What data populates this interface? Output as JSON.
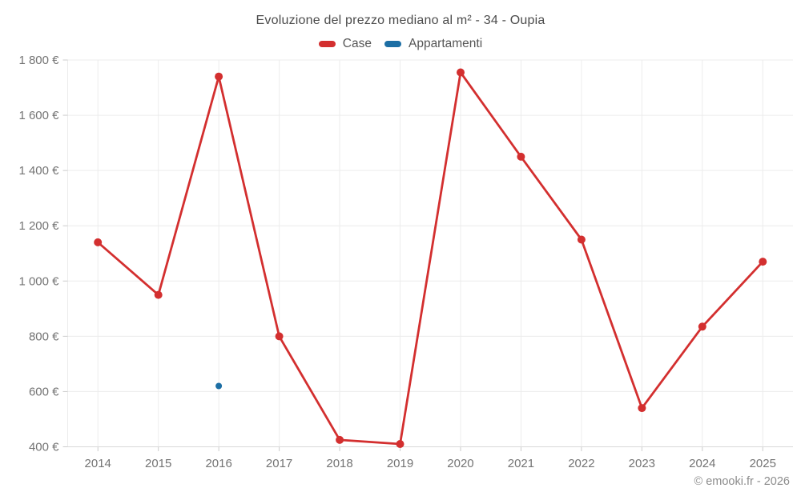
{
  "header": {
    "title": "Evoluzione del prezzo mediano al m² - 34 - Oupia"
  },
  "legend": {
    "items": [
      {
        "label": "Case",
        "color": "#d32f2f"
      },
      {
        "label": "Appartamenti",
        "color": "#1c6ea4"
      }
    ]
  },
  "footer": {
    "copyright": "© emooki.fr - 2026"
  },
  "chart_data": {
    "type": "line",
    "title": "Evoluzione del prezzo mediano al m² - 34 - Oupia",
    "categories": [
      "2014",
      "2015",
      "2016",
      "2017",
      "2018",
      "2019",
      "2020",
      "2021",
      "2022",
      "2023",
      "2024",
      "2025"
    ],
    "series": [
      {
        "name": "Case",
        "color": "#d32f2f",
        "marker_radius": 5,
        "values": [
          1140,
          950,
          1740,
          800,
          425,
          410,
          1755,
          1450,
          1150,
          540,
          835,
          1070
        ]
      },
      {
        "name": "Appartamenti",
        "color": "#1c6ea4",
        "marker_radius": 4,
        "values": [
          null,
          null,
          620,
          null,
          null,
          null,
          null,
          null,
          null,
          null,
          null,
          null
        ]
      }
    ],
    "xlabel": "",
    "ylabel": "",
    "ylim": [
      400,
      1800
    ],
    "ytick_step": 200,
    "ytick_labels": [
      "400 €",
      "600 €",
      "800 €",
      "1 000 €",
      "1 200 €",
      "1 400 €",
      "1 600 €",
      "1 800 €"
    ],
    "grid": true,
    "legend_position": "top",
    "colors": {
      "grid_line": "#ececec",
      "axis_line": "#d8d8d8",
      "tick": "#cccccc",
      "axis_text": "#747474"
    }
  }
}
